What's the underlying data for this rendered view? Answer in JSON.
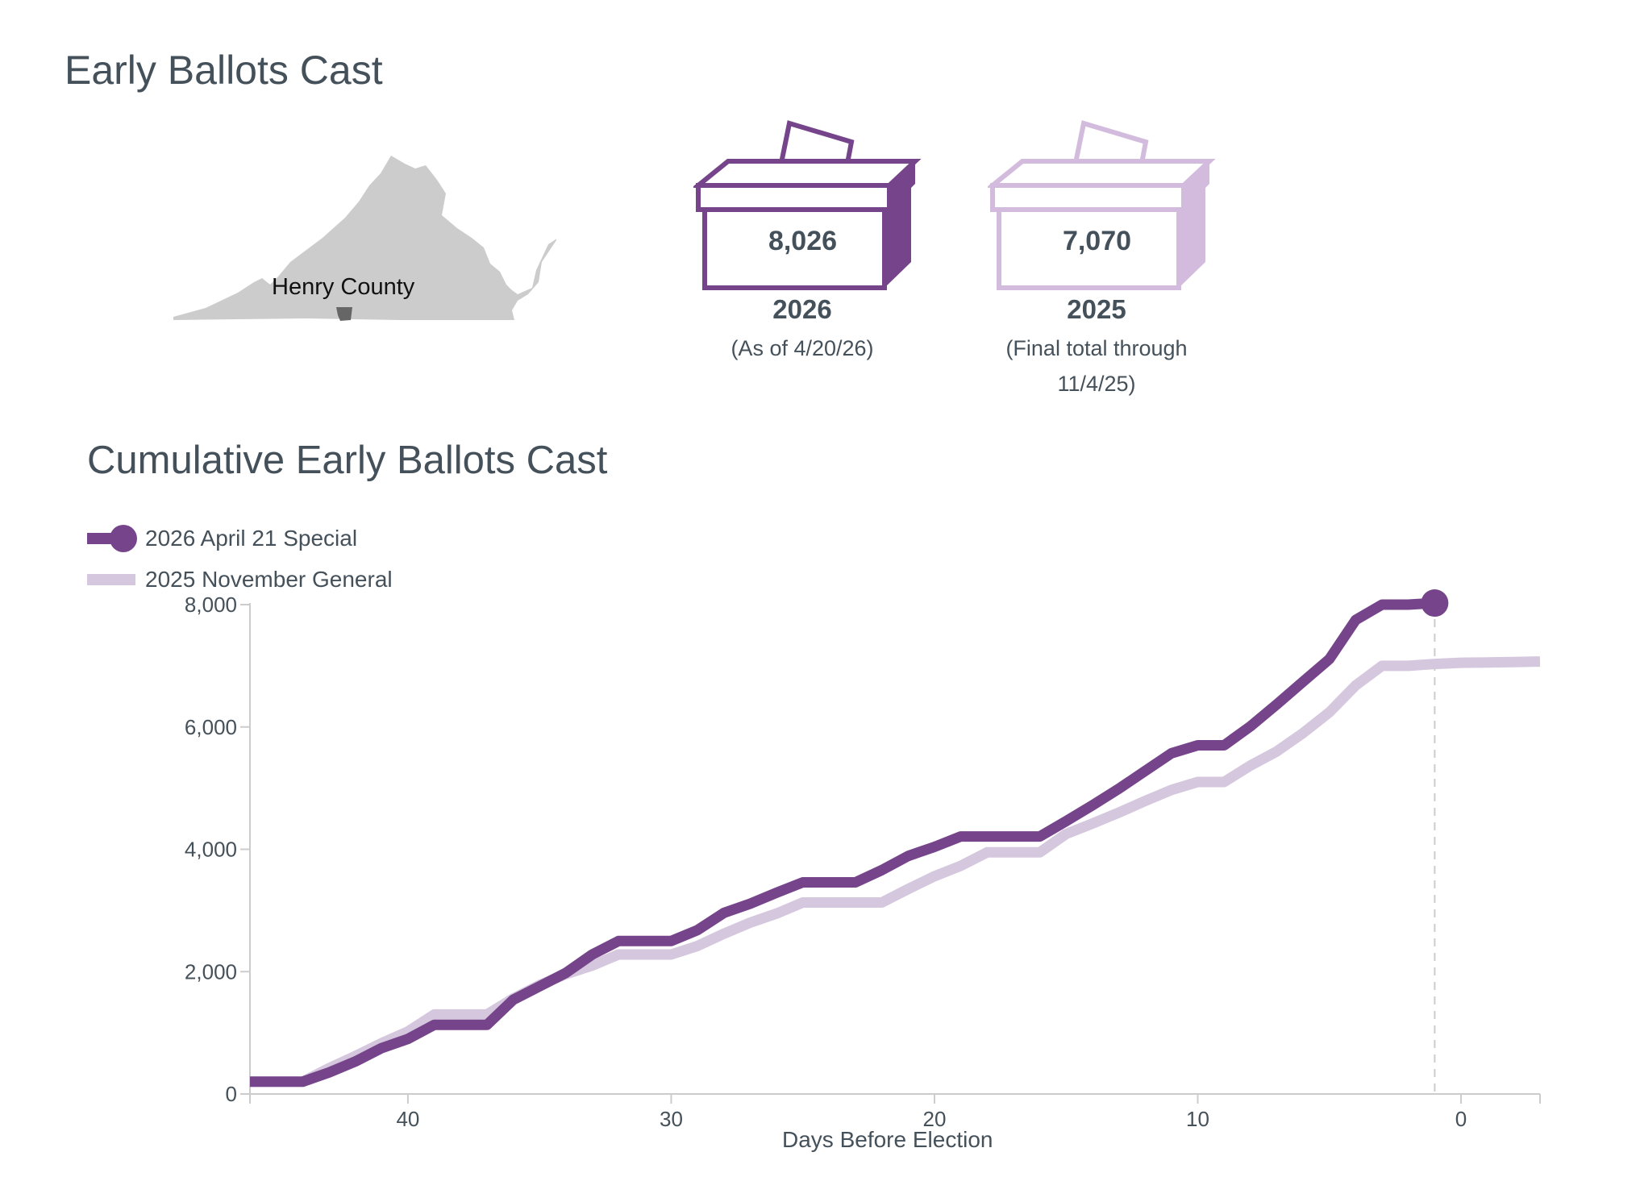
{
  "header": {
    "title": "Early Ballots Cast"
  },
  "map": {
    "county_label": "Henry County",
    "state_color": "#cccccc",
    "county_color": "#666666"
  },
  "ballots": [
    {
      "value": "8,026",
      "year": "2026",
      "note": "(As of 4/20/26)",
      "color": "#76448a"
    },
    {
      "value": "7,070",
      "year": "2025",
      "note": "(Final total through 11/4/25)",
      "color": "#d2bbdd"
    }
  ],
  "chart": {
    "title": "Cumulative Early Ballots Cast",
    "legend": [
      {
        "label": "2026 April 21 Special",
        "color": "#76448a"
      },
      {
        "label": "2025 November General",
        "color": "#d5c7dd"
      }
    ]
  },
  "chart_data": {
    "type": "line",
    "title": "Cumulative Early Ballots Cast",
    "xlabel": "Days Before Election",
    "ylabel": "",
    "xlim": [
      46,
      -3
    ],
    "ylim": [
      0,
      8000
    ],
    "x_ticks": [
      40,
      30,
      20,
      10,
      0
    ],
    "x_tick_labels": [
      "40",
      "30",
      "20",
      "10",
      "0"
    ],
    "y_ticks": [
      0,
      2000,
      4000,
      6000,
      8000
    ],
    "y_tick_labels": [
      "0",
      "2,000",
      "4,000",
      "6,000",
      "8,000"
    ],
    "reference_line_x": 1,
    "grid": false,
    "legend_position": "top-left",
    "series": [
      {
        "name": "2026 April 21 Special",
        "color": "#76448a",
        "end_marker": true,
        "x": [
          46,
          44,
          43,
          42,
          41,
          40,
          39,
          38,
          37,
          36,
          35,
          34,
          33,
          32,
          31,
          30,
          29,
          28,
          27,
          26,
          25,
          24,
          23,
          22,
          21,
          20,
          19,
          18,
          17,
          16,
          15,
          14,
          13,
          12,
          11,
          10,
          9,
          8,
          7,
          6,
          5,
          4,
          3,
          2,
          1
        ],
        "y": [
          200,
          200,
          350,
          530,
          750,
          900,
          1130,
          1130,
          1130,
          1540,
          1760,
          1980,
          2280,
          2500,
          2500,
          2500,
          2680,
          2960,
          3110,
          3290,
          3460,
          3460,
          3460,
          3660,
          3890,
          4040,
          4210,
          4210,
          4210,
          4210,
          4460,
          4720,
          4990,
          5280,
          5570,
          5700,
          5700,
          6010,
          6370,
          6740,
          7110,
          7750,
          8000,
          8000,
          8026
        ]
      },
      {
        "name": "2025 November General",
        "color": "#d5c7dd",
        "end_marker": false,
        "x": [
          46,
          44,
          43,
          42,
          41,
          40,
          39,
          38,
          37,
          36,
          35,
          34,
          33,
          32,
          31,
          30,
          29,
          28,
          27,
          26,
          25,
          24,
          23,
          22,
          21,
          20,
          19,
          18,
          17,
          16,
          15,
          14,
          13,
          12,
          11,
          10,
          9,
          8,
          7,
          6,
          5,
          4,
          3,
          2,
          1,
          0,
          -1,
          -2,
          -3
        ],
        "y": [
          200,
          200,
          420,
          620,
          830,
          1020,
          1300,
          1300,
          1300,
          1560,
          1780,
          1960,
          2100,
          2280,
          2280,
          2280,
          2420,
          2620,
          2800,
          2950,
          3130,
          3130,
          3130,
          3130,
          3350,
          3560,
          3730,
          3950,
          3950,
          3950,
          4250,
          4420,
          4600,
          4790,
          4970,
          5100,
          5100,
          5370,
          5600,
          5900,
          6240,
          6680,
          7000,
          7000,
          7030,
          7050,
          7055,
          7060,
          7070
        ]
      }
    ]
  }
}
